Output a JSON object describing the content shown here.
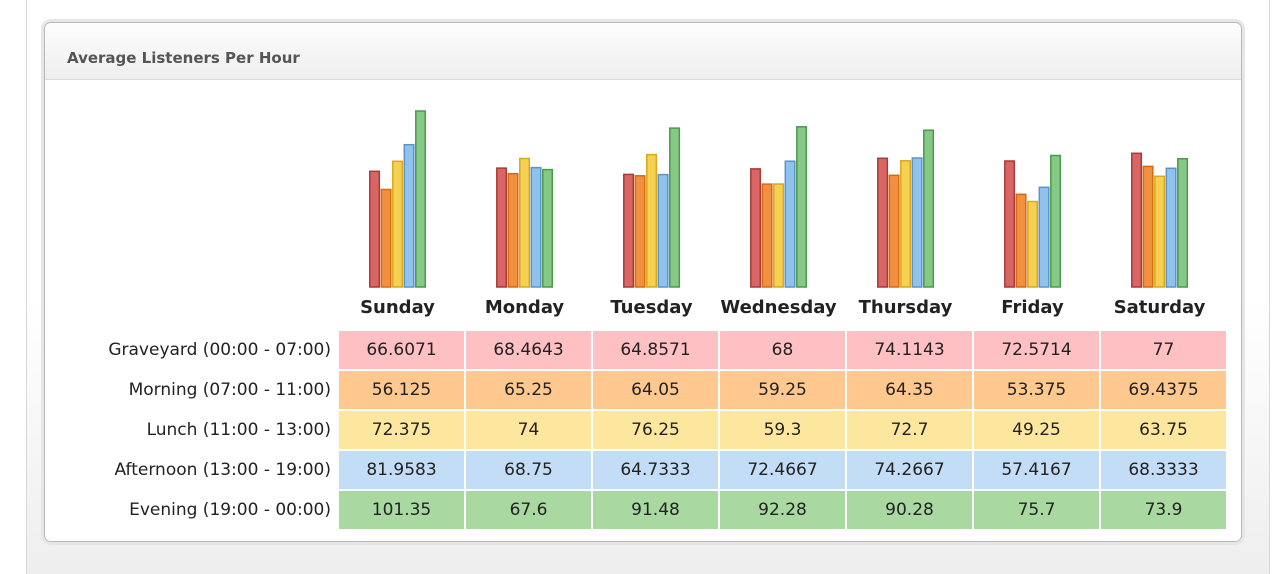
{
  "panel": {
    "title": "Average Listeners Per Hour"
  },
  "colors": {
    "series_fill": [
      "#d96565",
      "#f09040",
      "#f6d050",
      "#90c2ee",
      "#86c886"
    ],
    "series_stroke": [
      "#a83a3a",
      "#d76a10",
      "#d9a820",
      "#5d94c8",
      "#4b9a4b"
    ],
    "row_bg": [
      "#ffc0c4",
      "#ffc88e",
      "#fde79e",
      "#c4ddf7",
      "#a9d9a0"
    ]
  },
  "chart_data": {
    "type": "bar",
    "title": "Average Listeners Per Hour",
    "categories": [
      "Sunday",
      "Monday",
      "Tuesday",
      "Wednesday",
      "Thursday",
      "Friday",
      "Saturday"
    ],
    "series": [
      {
        "name": "Graveyard (00:00 - 07:00)",
        "values": [
          "66.6071",
          "68.4643",
          "64.8571",
          "68",
          "74.1143",
          "72.5714",
          "77"
        ]
      },
      {
        "name": "Morning (07:00 - 11:00)",
        "values": [
          "56.125",
          "65.25",
          "64.05",
          "59.25",
          "64.35",
          "53.375",
          "69.4375"
        ]
      },
      {
        "name": "Lunch (11:00 - 13:00)",
        "values": [
          "72.375",
          "74",
          "76.25",
          "59.3",
          "72.7",
          "49.25",
          "63.75"
        ]
      },
      {
        "name": "Afternoon (13:00 - 19:00)",
        "values": [
          "81.9583",
          "68.75",
          "64.7333",
          "72.4667",
          "74.2667",
          "57.4167",
          "68.3333"
        ]
      },
      {
        "name": "Evening (19:00 - 00:00)",
        "values": [
          "101.35",
          "67.6",
          "91.48",
          "92.28",
          "90.28",
          "75.7",
          "73.9"
        ]
      }
    ],
    "ylim": [
      0,
      101.35
    ],
    "grid": false,
    "legend": "table-below"
  }
}
